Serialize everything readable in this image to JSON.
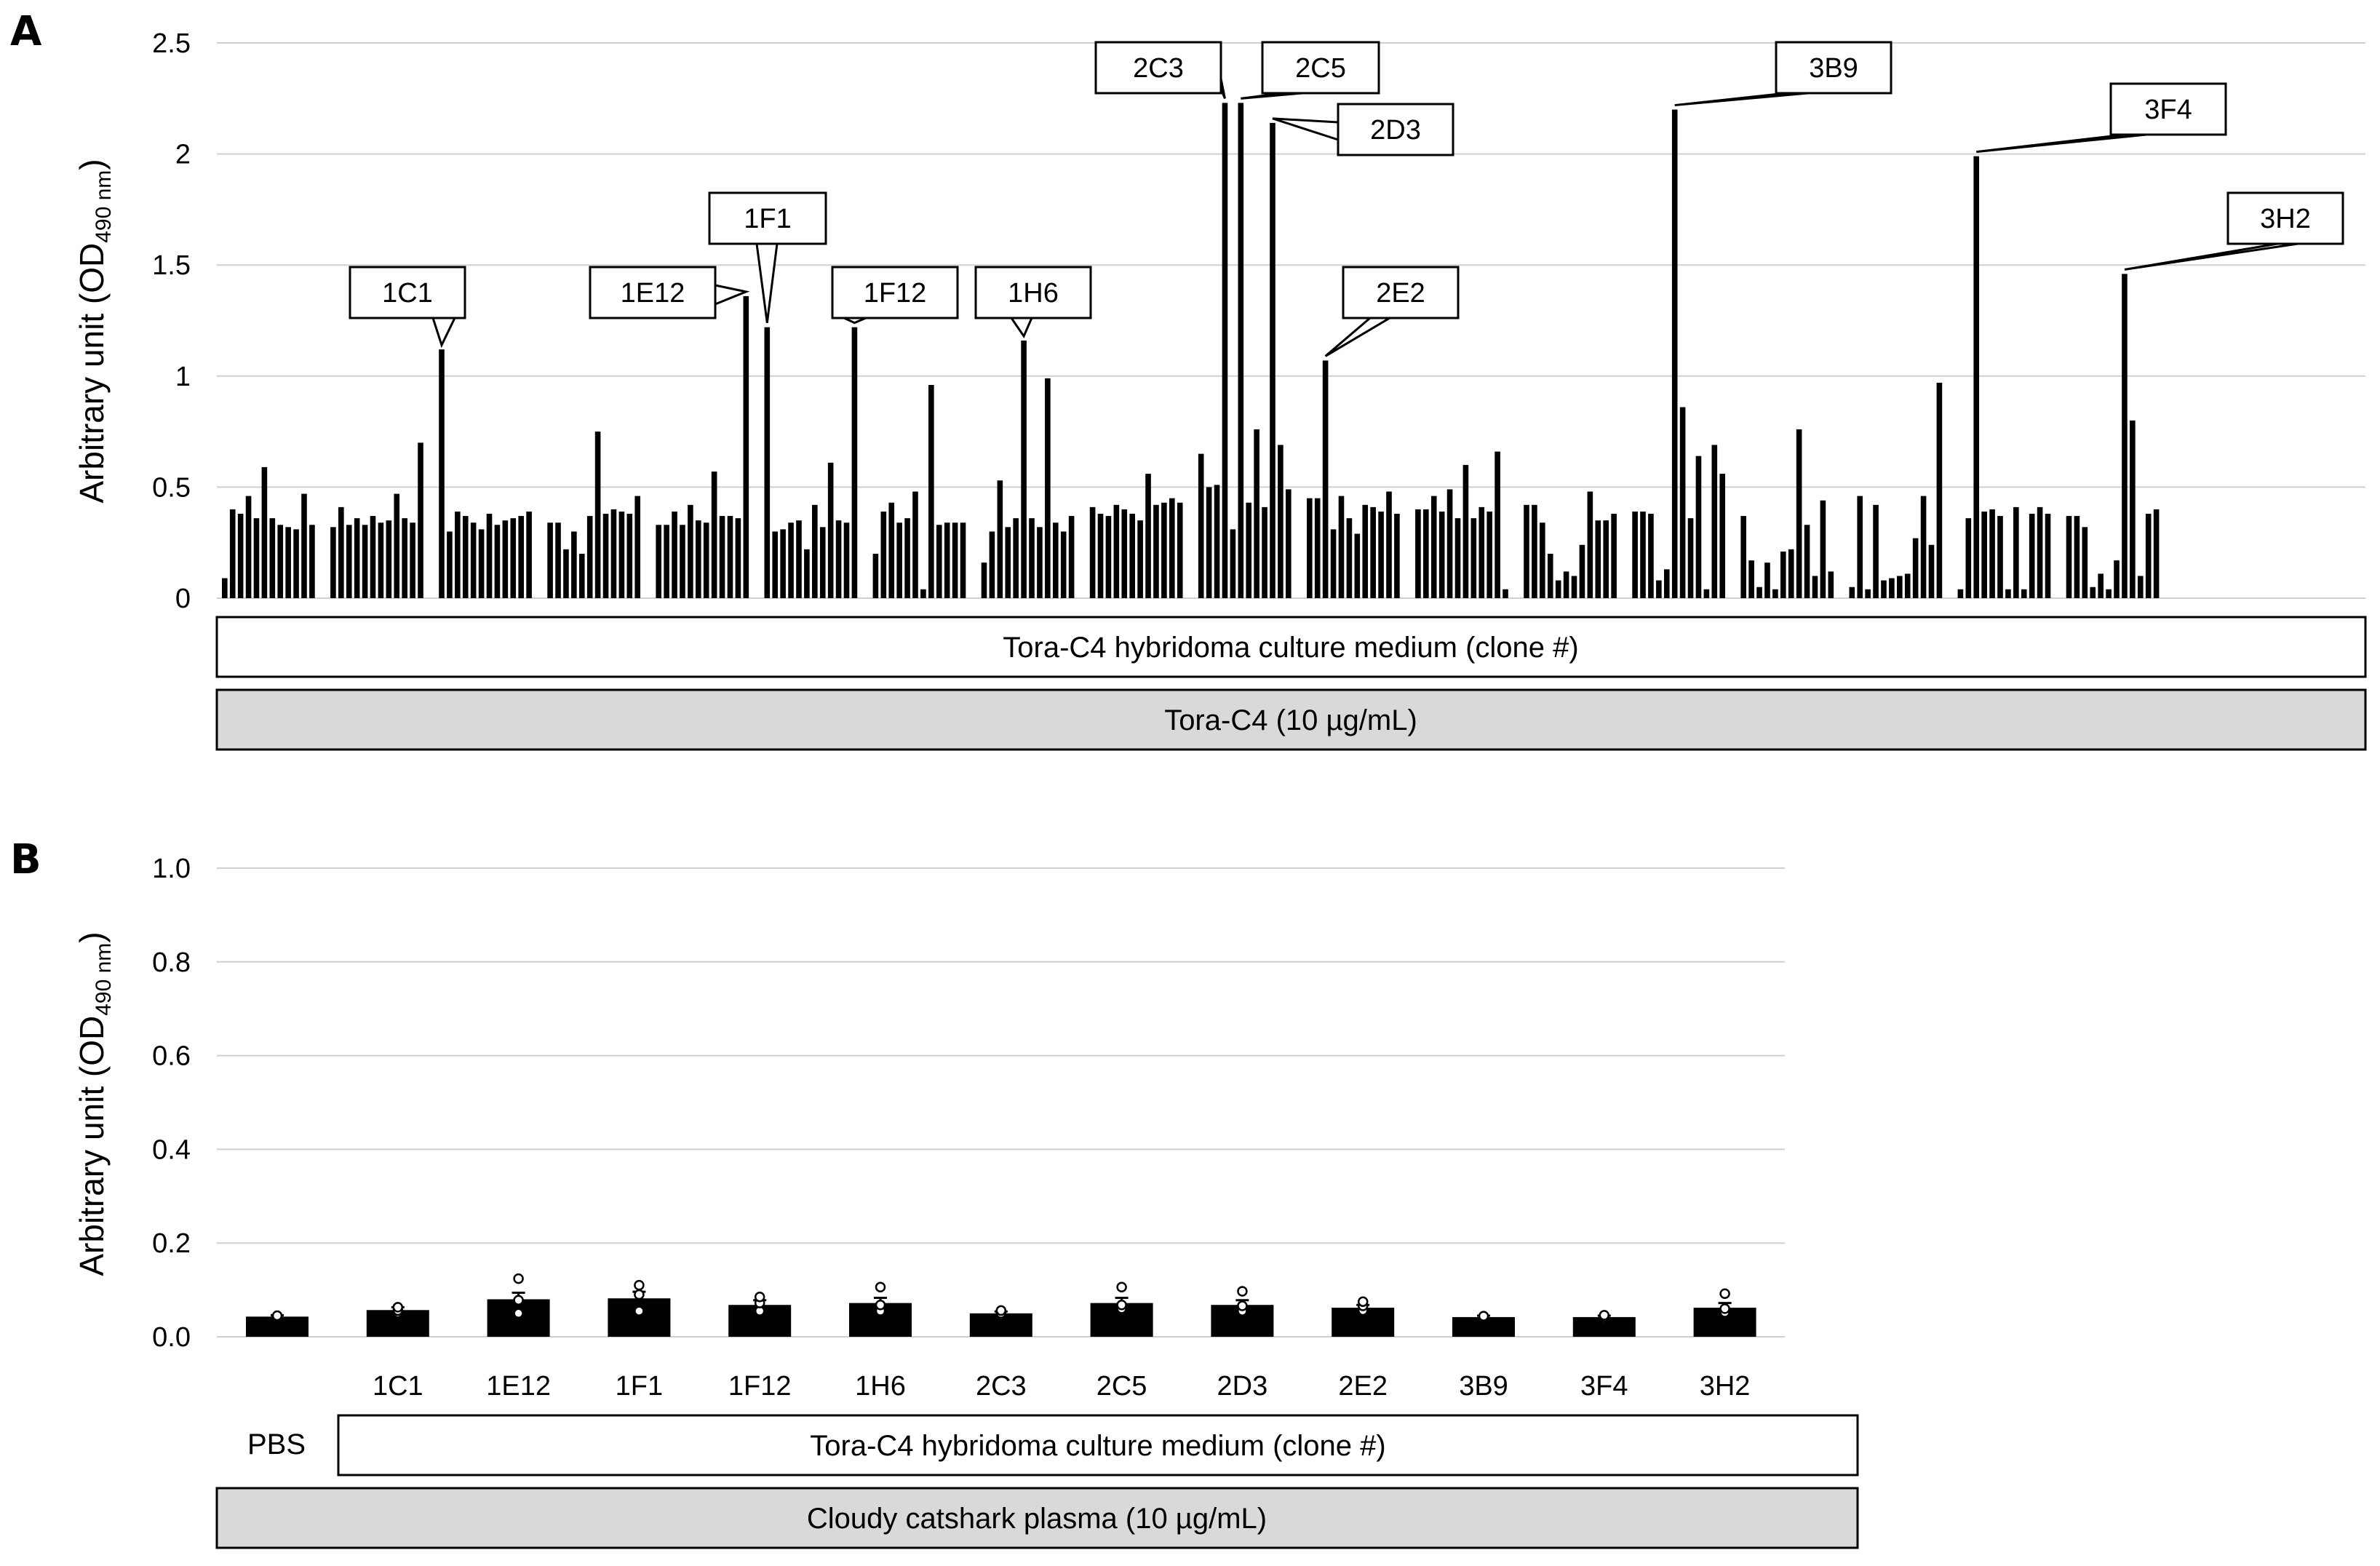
{
  "chart_data": [
    {
      "panel": "A",
      "type": "bar",
      "ylabel": "Arbitrary unit (OD",
      "ylabel_sub": "490 nm",
      "ylabel_close": ")",
      "ylim": [
        0,
        2.5
      ],
      "yticks": [
        "0",
        "0.5",
        "1",
        "1.5",
        "2",
        "2.5"
      ],
      "ytick_values": [
        0,
        0.5,
        1,
        1.5,
        2,
        2.5
      ],
      "grid": true,
      "groups": [
        [
          0.09,
          0.4,
          0.38,
          0.46,
          0.36,
          0.59,
          0.36,
          0.33,
          0.32,
          0.31,
          0.47,
          0.33
        ],
        [
          0.32,
          0.41,
          0.33,
          0.36,
          0.33,
          0.37,
          0.34,
          0.35,
          0.47,
          0.36,
          0.34,
          0.7
        ],
        [
          1.12,
          0.3,
          0.39,
          0.37,
          0.34,
          0.31,
          0.38,
          0.33,
          0.35,
          0.36,
          0.37,
          0.39
        ],
        [
          0.34,
          0.34,
          0.22,
          0.3,
          0.2,
          0.37,
          0.75,
          0.38,
          0.4,
          0.39,
          0.38,
          0.46
        ],
        [
          0.33,
          0.33,
          0.39,
          0.33,
          0.42,
          0.35,
          0.34,
          0.57,
          0.37,
          0.37,
          0.36,
          1.36
        ],
        [
          1.22,
          0.3,
          0.31,
          0.34,
          0.35,
          0.22,
          0.42,
          0.32,
          0.61,
          0.35,
          0.34,
          1.22
        ],
        [
          0.2,
          0.39,
          0.43,
          0.34,
          0.36,
          0.48,
          0.04,
          0.96,
          0.33,
          0.34,
          0.34,
          0.34
        ],
        [
          0.16,
          0.3,
          0.53,
          0.32,
          0.36,
          1.16,
          0.36,
          0.32,
          0.99,
          0.34,
          0.3,
          0.37
        ],
        [
          0.41,
          0.38,
          0.37,
          0.42,
          0.4,
          0.38,
          0.35,
          0.56,
          0.42,
          0.43,
          0.45,
          0.43
        ],
        [
          0.65,
          0.5,
          0.51,
          2.23,
          0.31,
          2.23,
          0.43,
          0.76,
          0.41,
          2.14,
          0.69,
          0.49
        ],
        [
          0.45,
          0.45,
          1.07,
          0.31,
          0.46,
          0.36,
          0.29,
          0.42,
          0.41,
          0.39,
          0.48,
          0.38
        ],
        [
          0.4,
          0.4,
          0.46,
          0.39,
          0.49,
          0.36,
          0.6,
          0.36,
          0.41,
          0.39,
          0.66,
          0.04
        ],
        [
          0.42,
          0.42,
          0.34,
          0.2,
          0.08,
          0.12,
          0.1,
          0.24,
          0.48,
          0.35,
          0.35,
          0.38
        ],
        [
          0.39,
          0.39,
          0.38,
          0.08,
          0.13,
          2.2,
          0.86,
          0.36,
          0.64,
          0.04,
          0.69,
          0.56
        ],
        [
          0.37,
          0.17,
          0.05,
          0.16,
          0.04,
          0.21,
          0.22,
          0.76,
          0.33,
          0.1,
          0.44,
          0.12
        ],
        [
          0.05,
          0.46,
          0.04,
          0.42,
          0.08,
          0.09,
          0.1,
          0.11,
          0.27,
          0.46,
          0.24,
          0.97
        ],
        [
          0.04,
          0.36,
          1.99,
          0.39,
          0.4,
          0.37,
          0.04,
          0.41,
          0.04,
          0.38,
          0.41,
          0.38
        ],
        [
          0.37,
          0.37,
          0.32,
          0.05,
          0.11,
          0.04,
          0.17,
          1.46,
          0.8,
          0.1,
          0.38,
          0.4
        ]
      ],
      "callouts": [
        {
          "label": "1C1",
          "group": 2,
          "index": 0
        },
        {
          "label": "1E12",
          "group": 4,
          "index": 11
        },
        {
          "label": "1F1",
          "group": 5,
          "index": 0
        },
        {
          "label": "1F12",
          "group": 5,
          "index": 11
        },
        {
          "label": "1H6",
          "group": 7,
          "index": 5
        },
        {
          "label": "2C3",
          "group": 9,
          "index": 3
        },
        {
          "label": "2C5",
          "group": 9,
          "index": 5
        },
        {
          "label": "2D3",
          "group": 9,
          "index": 9
        },
        {
          "label": "2E2",
          "group": 10,
          "index": 2
        },
        {
          "label": "3B9",
          "group": 13,
          "index": 5
        },
        {
          "label": "3F4",
          "group": 16,
          "index": 2
        },
        {
          "label": "3H2",
          "group": 17,
          "index": 7
        }
      ],
      "boxes": [
        "Tora-C4 hybridoma culture medium (clone #)",
        "Tora-C4 (10 µg/mL)"
      ]
    },
    {
      "panel": "B",
      "type": "bar",
      "ylabel": "Arbitrary unit (OD",
      "ylabel_sub": "490 nm",
      "ylabel_close": ")",
      "ylim": [
        0,
        1.0
      ],
      "yticks": [
        "0.0",
        "0.2",
        "0.4",
        "0.6",
        "0.8",
        "1.0"
      ],
      "ytick_values": [
        0,
        0.2,
        0.4,
        0.6,
        0.8,
        1.0
      ],
      "grid": true,
      "categories": [
        "",
        "1C1",
        "1E12",
        "1F1",
        "1F12",
        "1H6",
        "2C3",
        "2C5",
        "2D3",
        "2E2",
        "3B9",
        "3F4",
        "3H2"
      ],
      "values": [
        0.043,
        0.057,
        0.08,
        0.082,
        0.068,
        0.072,
        0.05,
        0.072,
        0.068,
        0.062,
        0.042,
        0.042,
        0.062
      ],
      "errors": [
        0.003,
        0.006,
        0.014,
        0.014,
        0.01,
        0.011,
        0.004,
        0.011,
        0.01,
        0.006,
        0.003,
        0.003,
        0.01
      ],
      "points": [
        [
          0.04,
          0.043,
          0.045
        ],
        [
          0.051,
          0.056,
          0.063
        ],
        [
          0.05,
          0.078,
          0.124
        ],
        [
          0.055,
          0.09,
          0.11
        ],
        [
          0.055,
          0.072,
          0.085
        ],
        [
          0.055,
          0.068,
          0.106
        ],
        [
          0.046,
          0.05,
          0.056
        ],
        [
          0.06,
          0.068,
          0.106
        ],
        [
          0.055,
          0.066,
          0.097
        ],
        [
          0.056,
          0.066,
          0.075
        ],
        [
          0.039,
          0.041,
          0.044
        ],
        [
          0.038,
          0.042,
          0.046
        ],
        [
          0.052,
          0.06,
          0.092
        ]
      ],
      "pbs_label": "PBS",
      "boxes": [
        "Tora-C4 hybridoma culture medium (clone #)",
        "Cloudy catshark plasma (10 µg/mL)"
      ]
    }
  ]
}
